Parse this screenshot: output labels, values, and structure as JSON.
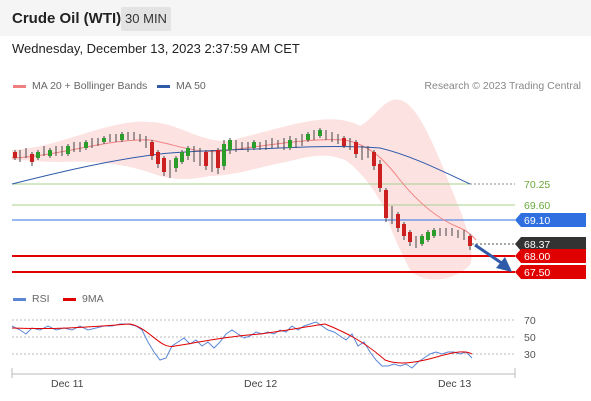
{
  "header": {
    "title": "Crude Oil (WTI)",
    "timeframe": "30 MIN"
  },
  "datetime": "Wednesday, December 13, 2023 2:37:59 AM CET",
  "legend": {
    "ma20": {
      "label": "MA 20 + Bollinger Bands",
      "color": "#f08080"
    },
    "ma50": {
      "label": "MA 50",
      "color": "#2e5aa8"
    }
  },
  "credit": "Research © 2023 Trading Central",
  "levels": [
    {
      "value": "70.25",
      "kind": "resistance-green",
      "color": "#6aa83c"
    },
    {
      "value": "69.60",
      "kind": "resistance-green",
      "color": "#6aa83c"
    },
    {
      "value": "69.10",
      "kind": "pivot",
      "color": "#2f6fe0"
    },
    {
      "value": "68.37",
      "kind": "last-price",
      "color": "#333333"
    },
    {
      "value": "68.00",
      "kind": "support",
      "color": "#e00000"
    },
    {
      "value": "67.50",
      "kind": "support",
      "color": "#e00000"
    }
  ],
  "rsi_legend": {
    "rsi": {
      "label": "RSI",
      "color": "#5b86d6"
    },
    "ma9": {
      "label": "9MA",
      "color": "#e00000"
    }
  },
  "rsi_ticks": [
    "70",
    "50",
    "30"
  ],
  "x_ticks": [
    "Dec 11",
    "Dec 12",
    "Dec 13"
  ],
  "arrow": {
    "direction": "down",
    "color": "#2e5aa8"
  }
}
